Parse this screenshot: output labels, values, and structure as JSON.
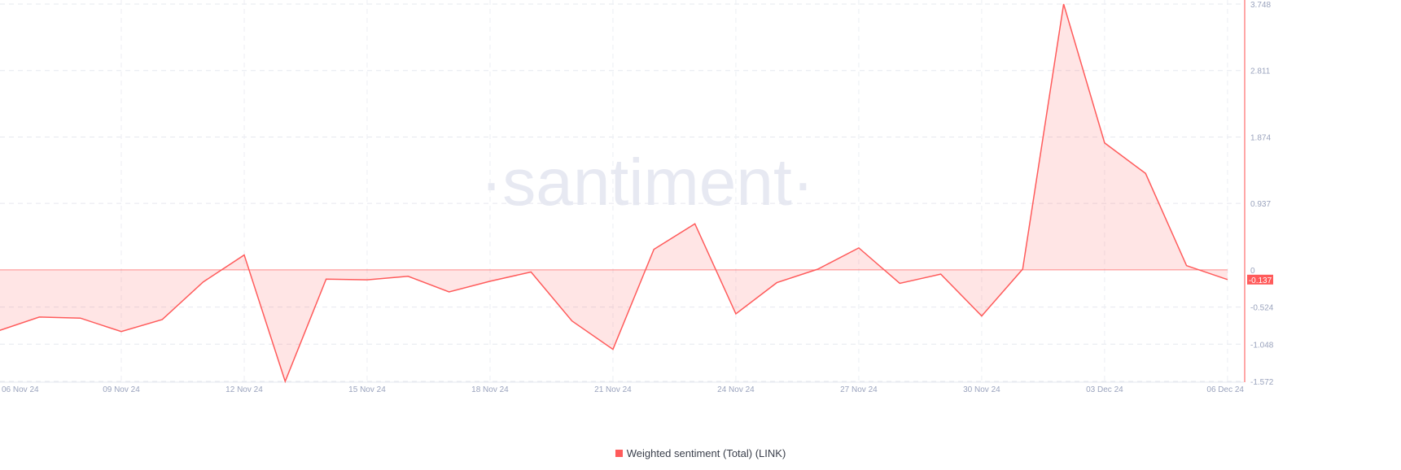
{
  "chart_data": {
    "type": "area",
    "watermark": "·santiment·",
    "x": [
      "06 Nov 24",
      "07 Nov 24",
      "08 Nov 24",
      "09 Nov 24",
      "10 Nov 24",
      "11 Nov 24",
      "12 Nov 24",
      "13 Nov 24",
      "14 Nov 24",
      "15 Nov 24",
      "16 Nov 24",
      "17 Nov 24",
      "18 Nov 24",
      "19 Nov 24",
      "20 Nov 24",
      "21 Nov 24",
      "22 Nov 24",
      "23 Nov 24",
      "24 Nov 24",
      "25 Nov 24",
      "26 Nov 24",
      "27 Nov 24",
      "28 Nov 24",
      "29 Nov 24",
      "30 Nov 24",
      "01 Dec 24",
      "02 Dec 24",
      "03 Dec 24",
      "04 Dec 24",
      "05 Dec 24",
      "06 Dec 24"
    ],
    "series": [
      {
        "name": "Weighted sentiment (Total) (LINK)",
        "color": "#ff5b5b",
        "values": [
          -0.86,
          -0.665,
          -0.68,
          -0.87,
          -0.7,
          -0.17,
          0.21,
          -1.572,
          -0.13,
          -0.14,
          -0.09,
          -0.31,
          -0.16,
          -0.03,
          -0.72,
          -1.12,
          0.29,
          0.65,
          -0.62,
          -0.18,
          0.01,
          0.31,
          -0.19,
          -0.06,
          -0.65,
          0.01,
          3.748,
          1.79,
          1.36,
          0.06,
          -0.137
        ]
      }
    ],
    "x_tick_labels": [
      "06 Nov 24",
      "09 Nov 24",
      "12 Nov 24",
      "15 Nov 24",
      "18 Nov 24",
      "21 Nov 24",
      "24 Nov 24",
      "27 Nov 24",
      "30 Nov 24",
      "03 Dec 24",
      "06 Dec 24"
    ],
    "y_tick_labels": [
      "3.748",
      "2.811",
      "1.874",
      "0.937",
      "0",
      "-0.524",
      "-1.048",
      "-1.572"
    ],
    "ylim": [
      -1.572,
      3.748
    ],
    "y_axis_position": "right",
    "last_value_label": "-0.137",
    "grid": true,
    "legend_position": "bottom-center"
  }
}
